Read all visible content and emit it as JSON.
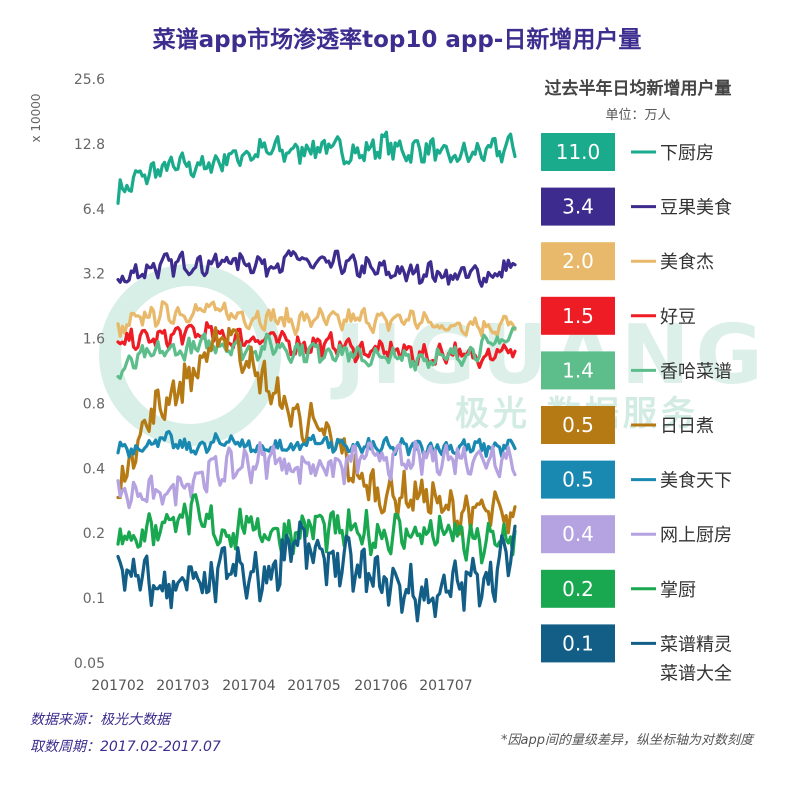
{
  "title": "菜谱app市场渗透率top10 app-日新增用户量",
  "y_unit_label": "x 10000",
  "watermark": {
    "letters": "JIGUANG",
    "cn": "极光 数据服务"
  },
  "legend": {
    "title": "过去半年日均新增用户量",
    "unit": "单位：万人"
  },
  "footer": {
    "source": "数据来源：极光大数据",
    "period": "取数周期：2017.02-2017.07",
    "note": "*因app间的量级差异，纵坐标轴为对数刻度"
  },
  "chart_data": {
    "type": "line",
    "y_scale": "log2",
    "ylim": [
      0.05,
      25.6
    ],
    "y_ticks": [
      "25.6",
      "12.8",
      "6.4",
      "3.2",
      "1.6",
      "0.8",
      "0.4",
      "0.2",
      "0.1",
      "0.05"
    ],
    "y_tick_values": [
      25.6,
      12.8,
      6.4,
      3.2,
      1.6,
      0.8,
      0.4,
      0.2,
      0.1,
      0.05
    ],
    "x_ticks": [
      "201702",
      "201703",
      "201704",
      "201705",
      "201706",
      "201707"
    ],
    "x_range": [
      "2017-02-01",
      "2017-07-31"
    ],
    "series": [
      {
        "name": "下厨房",
        "avg": "11.0",
        "color": "#1aaa8c",
        "values": [
          7.5,
          9.0,
          9.8,
          10.2,
          10.0,
          11.2,
          11.5,
          12.0,
          11.8,
          12.5,
          12.0,
          11.5,
          12.8,
          11.8,
          12.2,
          11.0,
          11.5,
          11.8,
          12.5
        ]
      },
      {
        "name": "豆果美食",
        "avg": "3.4",
        "color": "#3d2c8d",
        "values": [
          2.9,
          3.3,
          3.5,
          3.6,
          3.5,
          3.7,
          3.6,
          3.5,
          3.8,
          3.5,
          3.6,
          3.4,
          3.3,
          3.2,
          3.3,
          3.1,
          3.2,
          3.1,
          3.6
        ]
      },
      {
        "name": "美食杰",
        "avg": "2.0",
        "color": "#e8b96a",
        "values": [
          1.7,
          2.0,
          2.1,
          2.1,
          2.2,
          2.1,
          2.0,
          2.0,
          1.9,
          2.0,
          1.9,
          2.0,
          1.9,
          2.0,
          1.9,
          1.8,
          1.9,
          1.8,
          1.9
        ]
      },
      {
        "name": "好豆",
        "avg": "1.5",
        "color": "#ee1c24",
        "values": [
          1.5,
          1.6,
          1.6,
          1.7,
          1.7,
          1.6,
          1.6,
          1.6,
          1.5,
          1.5,
          1.5,
          1.4,
          1.4,
          1.4,
          1.3,
          1.4,
          1.3,
          1.4,
          1.4
        ]
      },
      {
        "name": "香哈菜谱",
        "avg": "1.4",
        "color": "#5dbd8b",
        "values": [
          1.1,
          1.3,
          1.4,
          1.4,
          1.5,
          1.5,
          1.4,
          1.5,
          1.4,
          1.4,
          1.4,
          1.3,
          1.3,
          1.3,
          1.3,
          1.3,
          1.4,
          1.5,
          1.7
        ]
      },
      {
        "name": "日日煮",
        "avg": "0.5",
        "color": "#b57a14",
        "values": [
          0.3,
          0.6,
          0.8,
          1.0,
          1.3,
          1.8,
          1.2,
          0.9,
          0.7,
          0.6,
          0.5,
          0.35,
          0.3,
          0.3,
          0.3,
          0.25,
          0.25,
          0.25,
          0.22
        ]
      },
      {
        "name": "美食天下",
        "avg": "0.5",
        "color": "#1a89b2",
        "values": [
          0.5,
          0.5,
          0.55,
          0.5,
          0.5,
          0.55,
          0.5,
          0.5,
          0.5,
          0.55,
          0.5,
          0.5,
          0.5,
          0.5,
          0.5,
          0.5,
          0.5,
          0.5,
          0.5
        ]
      },
      {
        "name": "网上厨房",
        "avg": "0.4",
        "color": "#b5a2e0",
        "values": [
          0.3,
          0.3,
          0.3,
          0.35,
          0.38,
          0.4,
          0.42,
          0.45,
          0.4,
          0.42,
          0.4,
          0.45,
          0.45,
          0.42,
          0.45,
          0.45,
          0.45,
          0.45,
          0.45
        ]
      },
      {
        "name": "掌厨",
        "avg": "0.2",
        "color": "#19a850",
        "values": [
          0.18,
          0.2,
          0.22,
          0.25,
          0.22,
          0.2,
          0.22,
          0.2,
          0.2,
          0.22,
          0.2,
          0.2,
          0.2,
          0.2,
          0.2,
          0.2,
          0.18,
          0.18,
          0.2
        ]
      },
      {
        "name": "菜谱精灵",
        "name2": "菜谱大全",
        "avg": "0.1",
        "color": "#125e86",
        "values": [
          0.14,
          0.12,
          0.11,
          0.12,
          0.11,
          0.14,
          0.12,
          0.13,
          0.2,
          0.15,
          0.15,
          0.13,
          0.12,
          0.11,
          0.1,
          0.11,
          0.12,
          0.13,
          0.17
        ]
      }
    ]
  }
}
